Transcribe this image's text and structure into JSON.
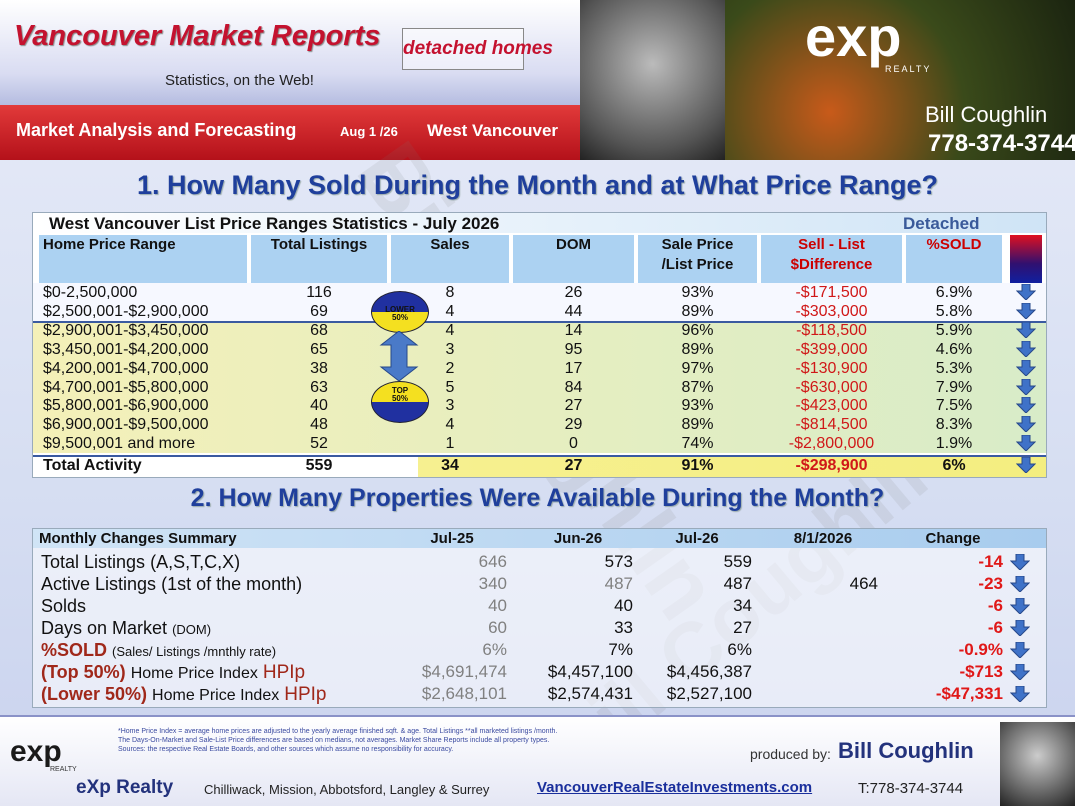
{
  "header": {
    "title": "Vancouver Market Reports",
    "subtitle": "Statistics, on the Web!",
    "badge": "detached homes",
    "tagline": "Market Analysis and Forecasting",
    "date": "Aug 1 /26",
    "area": "West Vancouver",
    "logo": "exp",
    "logo_sub": "REALTY",
    "agent": "Bill Coughlin",
    "phone": "778-374-3744"
  },
  "watermark": "Bill Coughlin",
  "section1": {
    "heading": "1. How Many Sold During the Month and at What Price Range?",
    "table_title": "West Vancouver List Price Ranges Statistics - July  2026",
    "property_type": "Detached",
    "columns": [
      [
        "Home Price Range"
      ],
      [
        "Total  Listings"
      ],
      [
        "Sales"
      ],
      [
        "DOM"
      ],
      [
        "Sale Price",
        "/List Price"
      ],
      [
        "Sell - List",
        "$Difference"
      ],
      [
        "%SOLD"
      ]
    ],
    "rows": [
      [
        "$0-2,500,000",
        "116",
        "8",
        "26",
        "93%",
        "-$171,500",
        "6.9%"
      ],
      [
        "$2,500,001-$2,900,000",
        "69",
        "4",
        "44",
        "89%",
        "-$303,000",
        "5.8%"
      ],
      [
        "$2,900,001-$3,450,000",
        "68",
        "4",
        "14",
        "96%",
        "-$118,500",
        "5.9%"
      ],
      [
        "$3,450,001-$4,200,000",
        "65",
        "3",
        "95",
        "89%",
        "-$399,000",
        "4.6%"
      ],
      [
        "$4,200,001-$4,700,000",
        "38",
        "2",
        "17",
        "97%",
        "-$130,900",
        "5.3%"
      ],
      [
        "$4,700,001-$5,800,000",
        "63",
        "5",
        "84",
        "87%",
        "-$630,000",
        "7.9%"
      ],
      [
        "$5,800,001-$6,900,000",
        "40",
        "3",
        "27",
        "93%",
        "-$423,000",
        "7.5%"
      ],
      [
        "$6,900,001-$9,500,000",
        "48",
        "4",
        "29",
        "89%",
        "-$814,500",
        "8.3%"
      ],
      [
        "$9,500,001 and more",
        "52",
        "1",
        "0",
        "74%",
        "-$2,800,000",
        "1.9%"
      ]
    ],
    "total": [
      "Total Activity",
      "559",
      "34",
      "27",
      "91%",
      "-$298,900",
      "6%"
    ],
    "lower_badge": [
      "LOWER",
      "50%"
    ],
    "top_badge": [
      "TOP",
      "50%"
    ]
  },
  "section2": {
    "heading": "2. How Many Properties Were Available During the Month?",
    "columns": [
      "Monthly Changes Summary",
      "Jul-25",
      "Jun-26",
      "Jul-26",
      "8/1/2026",
      "Change"
    ],
    "rows": [
      {
        "label": "Total Listings",
        "note": "(A,S,T,C,X)",
        "cells": [
          "646",
          "573",
          "559",
          null,
          "-14"
        ]
      },
      {
        "label": "Active Listings",
        "note": "(1st of the month)",
        "cells": [
          "340",
          "487",
          "487",
          "464",
          "-23"
        ]
      },
      {
        "label": "Solds",
        "cells": [
          "40",
          "40",
          "34",
          null,
          "-6"
        ]
      },
      {
        "label": "Days on Market",
        "note": "(DOM)",
        "cells": [
          "60",
          "33",
          "27",
          null,
          "-6"
        ]
      },
      {
        "label": "%SOLD",
        "note": "(Sales/ Listings /mnthly rate)",
        "cells": [
          "6%",
          "7%",
          "6%",
          null,
          "-0.9%"
        ]
      },
      {
        "label": "(Top 50%)",
        "note": "Home Price Index",
        "suffix": "HPIp",
        "cells": [
          "$4,691,474",
          "$4,457,100",
          "$4,456,387",
          null,
          "-$713"
        ]
      },
      {
        "label": "(Lower 50%)",
        "note": "Home Price Index",
        "suffix": "HPIp",
        "cells": [
          "$2,648,101",
          "$2,574,431",
          "$2,527,100",
          null,
          "-$47,331"
        ]
      }
    ]
  },
  "footer": {
    "notes": [
      "*Home Price Index = average home prices are adjusted to the yearly average finished sqft. & age.  Total Listings **all marketed listings /month.",
      "The Days-On-Market and Sale-List Price differences are based on medians, not averages. Market Share Reports include all property types.",
      "Sources:  the respective Real Estate Boards, and other sources which assume no responsibility for accuracy."
    ],
    "produced_by": "produced by:",
    "agent": "Bill Coughlin",
    "company": "eXp Realty",
    "areas": "Chilliwack, Mission, Abbotsford, Langley & Surrey",
    "website": "VancouverRealEstateInvestments.com",
    "phone": "T:778-374-3744",
    "logo": "exp",
    "logo_sub": "REALTY"
  }
}
